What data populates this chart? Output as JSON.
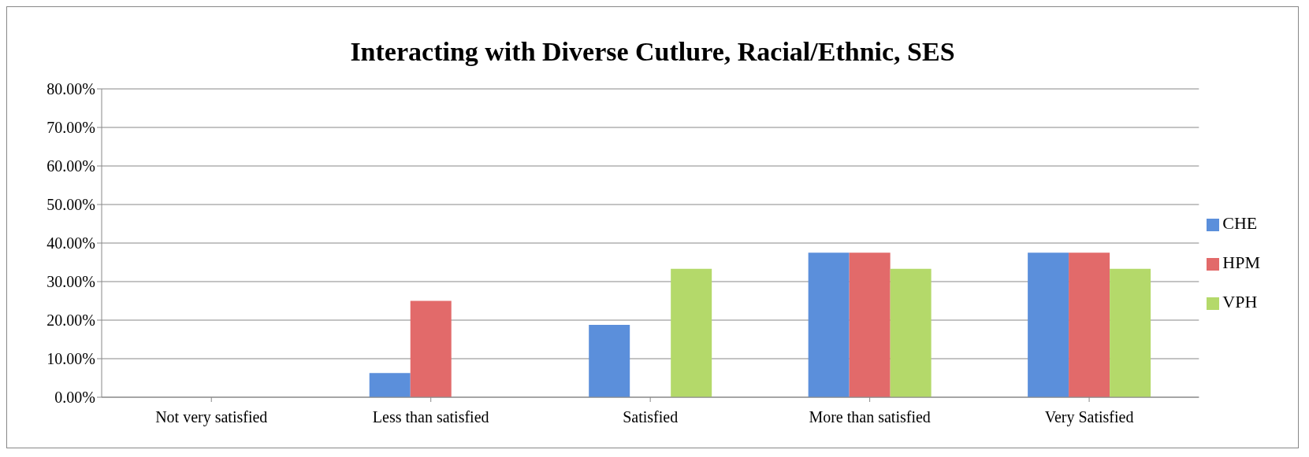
{
  "chart_data": {
    "type": "bar",
    "title": "Interacting with Diverse Cutlure, Racial/Ethnic, SES",
    "categories": [
      "Not very satisfied",
      "Less than satisfied",
      "Satisfied",
      "More than satisfied",
      "Very Satisfied"
    ],
    "series": [
      {
        "name": "CHE",
        "color": "#5b8fdb",
        "values": [
          0,
          6.3,
          18.8,
          37.5,
          37.5
        ]
      },
      {
        "name": "HPM",
        "color": "#e26a6a",
        "values": [
          0,
          25,
          0,
          37.5,
          37.5
        ]
      },
      {
        "name": "VPH",
        "color": "#b4d96a",
        "values": [
          0,
          0,
          33.3,
          33.3,
          33.3
        ]
      }
    ],
    "ylim": [
      0,
      80
    ],
    "yticks": [
      {
        "value": 0,
        "label": "0.00%"
      },
      {
        "value": 10,
        "label": "10.00%"
      },
      {
        "value": 20,
        "label": "20.00%"
      },
      {
        "value": 30,
        "label": "30.00%"
      },
      {
        "value": 40,
        "label": "40.00%"
      },
      {
        "value": 50,
        "label": "50.00%"
      },
      {
        "value": 60,
        "label": "60.00%"
      },
      {
        "value": 70,
        "label": "70.00%"
      },
      {
        "value": 80,
        "label": "80.00%"
      }
    ],
    "grid": "y",
    "legend": "right"
  }
}
